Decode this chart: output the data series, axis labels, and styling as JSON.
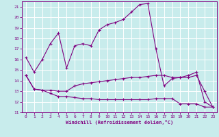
{
  "xlabel": "Windchill (Refroidissement éolien,°C)",
  "bg_color": "#c8ecec",
  "grid_color": "#ffffff",
  "line_color": "#800080",
  "xlim": [
    -0.5,
    23.5
  ],
  "ylim": [
    11,
    21.5
  ],
  "xticks": [
    0,
    1,
    2,
    3,
    4,
    5,
    6,
    7,
    8,
    9,
    10,
    11,
    12,
    13,
    14,
    15,
    16,
    17,
    18,
    19,
    20,
    21,
    22,
    23
  ],
  "yticks": [
    11,
    12,
    13,
    14,
    15,
    16,
    17,
    18,
    19,
    20,
    21
  ],
  "series1_x": [
    0,
    1,
    2,
    3,
    4,
    5,
    6,
    7,
    8,
    9,
    10,
    11,
    12,
    13,
    14,
    15,
    16,
    17,
    18,
    19,
    20,
    21,
    22,
    23
  ],
  "series1_y": [
    16.2,
    14.8,
    16.0,
    17.5,
    18.5,
    15.2,
    17.3,
    17.5,
    17.3,
    18.8,
    19.3,
    19.5,
    19.8,
    20.5,
    21.2,
    21.3,
    17.0,
    13.5,
    14.2,
    14.3,
    14.5,
    14.8,
    12.0,
    11.5
  ],
  "series2_x": [
    0,
    1,
    2,
    3,
    4,
    5,
    6,
    7,
    8,
    9,
    10,
    11,
    12,
    13,
    14,
    15,
    16,
    17,
    18,
    19,
    20,
    21,
    22,
    23
  ],
  "series2_y": [
    14.5,
    13.2,
    13.1,
    13.1,
    13.0,
    13.0,
    13.5,
    13.7,
    13.8,
    13.9,
    14.0,
    14.1,
    14.2,
    14.3,
    14.3,
    14.4,
    14.5,
    14.5,
    14.3,
    14.3,
    14.3,
    14.5,
    13.0,
    11.5
  ],
  "series3_x": [
    0,
    1,
    2,
    3,
    4,
    5,
    6,
    7,
    8,
    9,
    10,
    11,
    12,
    13,
    14,
    15,
    16,
    17,
    18,
    19,
    20,
    21,
    22,
    23
  ],
  "series3_y": [
    14.5,
    13.2,
    13.1,
    12.8,
    12.5,
    12.5,
    12.4,
    12.3,
    12.3,
    12.2,
    12.2,
    12.2,
    12.2,
    12.2,
    12.2,
    12.2,
    12.3,
    12.3,
    12.3,
    11.8,
    11.8,
    11.8,
    11.5,
    11.5
  ]
}
